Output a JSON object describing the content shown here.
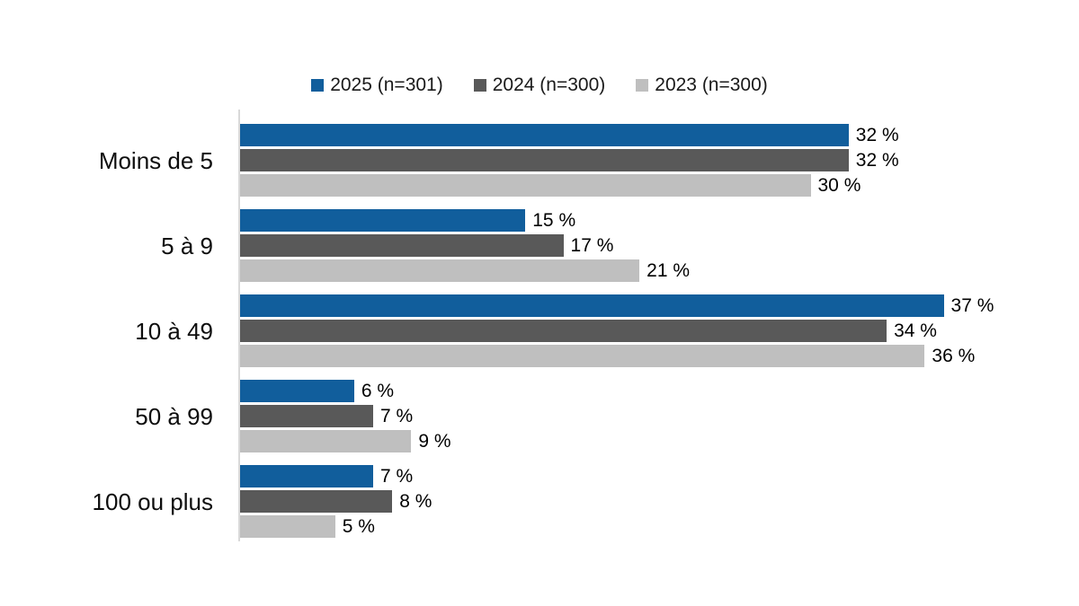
{
  "chart_data": {
    "type": "bar",
    "orientation": "horizontal",
    "title": "",
    "xlabel": "",
    "ylabel": "",
    "grid": false,
    "legend_position": "top",
    "xlim": [
      0,
      40
    ],
    "value_suffix": " %",
    "categories": [
      "Moins de 5",
      "5 à 9",
      "10 à 49",
      "50 à 99",
      "100 ou plus"
    ],
    "series": [
      {
        "name": "2025 (n=301)",
        "color": "#115E9C",
        "values": [
          32,
          15,
          37,
          6,
          7
        ],
        "labels": [
          "32 %",
          "15 %",
          "37 %",
          "6 %",
          "7 %"
        ]
      },
      {
        "name": "2024 (n=300)",
        "color": "#595959",
        "values": [
          32,
          17,
          34,
          7,
          8
        ],
        "labels": [
          "32 %",
          "17 %",
          "34 %",
          "7 %",
          "8 %"
        ]
      },
      {
        "name": "2023 (n=300)",
        "color": "#BFBFBF",
        "values": [
          30,
          21,
          36,
          9,
          5
        ],
        "labels": [
          "30 %",
          "21 %",
          "36 %",
          "9 %",
          "5 %"
        ]
      }
    ]
  },
  "colors": {
    "axis_line": "#D9D9D9",
    "background": "#FFFFFF",
    "label_text": "#000000"
  }
}
